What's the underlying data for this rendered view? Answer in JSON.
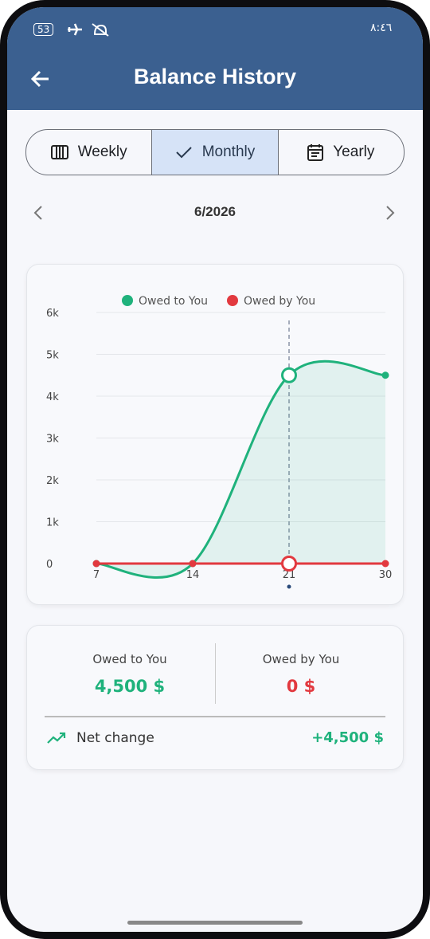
{
  "status_bar": {
    "battery": "53",
    "time": "٨:٤٦"
  },
  "header": {
    "title": "Balance History"
  },
  "tabs": [
    "Weekly",
    "Monthly",
    "Yearly"
  ],
  "period": "6/2026",
  "chart_data": {
    "type": "line",
    "categories": [
      "7",
      "14",
      "21",
      "30"
    ],
    "series": [
      {
        "name": "Owed to You",
        "color": "#1fb27c",
        "values": [
          0,
          0,
          4500,
          4500
        ]
      },
      {
        "name": "Owed by You",
        "color": "#e2393f",
        "values": [
          0,
          0,
          0,
          0
        ]
      }
    ],
    "ylim": [
      0,
      6000
    ],
    "yticks": [
      0,
      {
        "value": 1000,
        "label": "1k"
      },
      {
        "value": 2000,
        "label": "2k"
      },
      {
        "value": 3000,
        "label": "3k"
      },
      {
        "value": 4000,
        "label": "4k"
      },
      {
        "value": 5000,
        "label": "5k"
      },
      {
        "value": 6000,
        "label": "6k"
      }
    ],
    "grid": true
  },
  "summary": {
    "owed_to_you": {
      "label": "Owed to You",
      "value": "4,500 $"
    },
    "owed_by_you": {
      "label": "Owed by You",
      "value": "0 $"
    },
    "net_change": {
      "label": "Net change",
      "value": "+4,500 $"
    }
  }
}
